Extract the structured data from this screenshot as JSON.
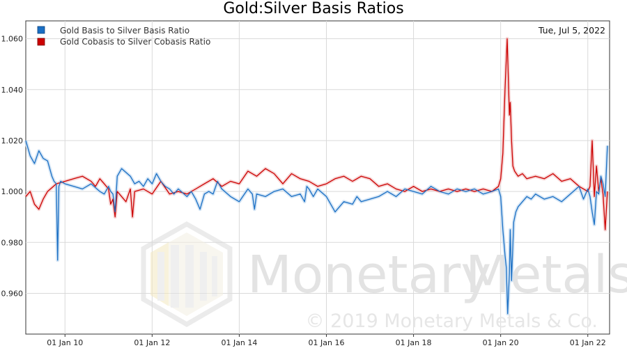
{
  "chart_data": {
    "type": "line",
    "title": "Gold:Silver Basis Ratios",
    "date_label": "Tue, Jul 5, 2022",
    "xlim": [
      2009.1,
      2022.5
    ],
    "ylim": [
      0.944,
      1.067
    ],
    "yticks": [
      0.96,
      0.98,
      1.0,
      1.02,
      1.04,
      1.06
    ],
    "ytick_labels": [
      "0.960",
      "0.980",
      "1.000",
      "1.020",
      "1.040",
      "1.060"
    ],
    "xticks": [
      2010,
      2012,
      2014,
      2016,
      2018,
      2020,
      2022
    ],
    "xtick_labels": [
      "01 Jan 10",
      "01 Jan 12",
      "01 Jan 14",
      "01 Jan 16",
      "01 Jan 18",
      "01 Jan 20",
      "01 Jan 22"
    ],
    "grid": true,
    "legend_position": "top-left",
    "series": [
      {
        "name": "Gold Basis to Silver Basis Ratio",
        "color": "#1a6fc4",
        "x": [
          2009.1,
          2009.2,
          2009.3,
          2009.4,
          2009.5,
          2009.6,
          2009.7,
          2009.75,
          2009.8,
          2009.83,
          2009.86,
          2009.9,
          2010.0,
          2010.2,
          2010.4,
          2010.6,
          2010.8,
          2010.9,
          2011.0,
          2011.05,
          2011.1,
          2011.15,
          2011.2,
          2011.3,
          2011.5,
          2011.6,
          2011.7,
          2011.8,
          2011.9,
          2012.0,
          2012.1,
          2012.2,
          2012.3,
          2012.4,
          2012.5,
          2012.6,
          2012.8,
          2012.9,
          2013.0,
          2013.1,
          2013.2,
          2013.3,
          2013.4,
          2013.5,
          2013.6,
          2013.8,
          2014.0,
          2014.2,
          2014.3,
          2014.35,
          2014.4,
          2014.6,
          2014.8,
          2015.0,
          2015.2,
          2015.4,
          2015.5,
          2015.55,
          2015.6,
          2015.7,
          2015.8,
          2016.0,
          2016.2,
          2016.4,
          2016.6,
          2016.7,
          2016.8,
          2017.0,
          2017.2,
          2017.4,
          2017.6,
          2017.8,
          2018.0,
          2018.2,
          2018.4,
          2018.6,
          2018.8,
          2019.0,
          2019.2,
          2019.4,
          2019.6,
          2019.8,
          2019.95,
          2020.0,
          2020.05,
          2020.1,
          2020.13,
          2020.16,
          2020.2,
          2020.22,
          2020.25,
          2020.3,
          2020.35,
          2020.4,
          2020.5,
          2020.6,
          2020.7,
          2020.8,
          2021.0,
          2021.2,
          2021.4,
          2021.6,
          2021.8,
          2021.9,
          2022.0,
          2022.05,
          2022.1,
          2022.15,
          2022.2,
          2022.25,
          2022.3,
          2022.35,
          2022.4,
          2022.45
        ],
        "y": [
          1.02,
          1.014,
          1.011,
          1.016,
          1.013,
          1.012,
          1.006,
          1.004,
          1.003,
          0.973,
          1.002,
          1.004,
          1.003,
          1.002,
          1.001,
          1.003,
          1.0,
          0.999,
          1.002,
          1.0,
          0.999,
          0.992,
          1.006,
          1.009,
          1.006,
          1.003,
          1.004,
          1.002,
          1.005,
          1.003,
          1.007,
          1.004,
          1.002,
          1.001,
          0.999,
          1.001,
          0.998,
          1.0,
          0.997,
          0.993,
          0.999,
          1.0,
          0.999,
          1.004,
          1.001,
          0.998,
          0.996,
          1.001,
          0.999,
          0.993,
          0.999,
          0.998,
          1.0,
          1.001,
          0.998,
          0.999,
          0.996,
          1.002,
          1.001,
          0.998,
          1.001,
          0.998,
          0.992,
          0.996,
          0.995,
          0.998,
          0.996,
          0.997,
          0.998,
          1.0,
          0.998,
          1.001,
          1.0,
          0.999,
          1.002,
          1.0,
          0.999,
          1.001,
          1.0,
          1.001,
          0.999,
          1.0,
          1.001,
          0.998,
          0.985,
          0.975,
          0.97,
          0.952,
          0.968,
          0.985,
          0.965,
          0.988,
          0.992,
          0.994,
          0.996,
          0.998,
          0.997,
          0.999,
          0.997,
          0.998,
          0.996,
          0.999,
          1.002,
          0.997,
          1.001,
          0.998,
          0.992,
          0.987,
          1.0,
          0.999,
          1.006,
          1.003,
          0.998,
          1.018
        ]
      },
      {
        "name": "Gold Cobasis to Silver Cobasis Ratio",
        "color": "#cc0000",
        "x": [
          2009.1,
          2009.2,
          2009.3,
          2009.4,
          2009.5,
          2009.6,
          2009.8,
          2010.0,
          2010.2,
          2010.4,
          2010.6,
          2010.7,
          2010.8,
          2010.9,
          2011.0,
          2011.05,
          2011.1,
          2011.15,
          2011.2,
          2011.4,
          2011.5,
          2011.55,
          2011.6,
          2011.8,
          2012.0,
          2012.2,
          2012.4,
          2012.6,
          2012.8,
          2013.0,
          2013.2,
          2013.4,
          2013.6,
          2013.8,
          2014.0,
          2014.2,
          2014.4,
          2014.6,
          2014.8,
          2015.0,
          2015.2,
          2015.4,
          2015.6,
          2015.8,
          2016.0,
          2016.2,
          2016.4,
          2016.6,
          2016.8,
          2017.0,
          2017.2,
          2017.4,
          2017.6,
          2017.8,
          2018.0,
          2018.2,
          2018.4,
          2018.6,
          2018.8,
          2019.0,
          2019.2,
          2019.4,
          2019.6,
          2019.8,
          2019.95,
          2020.0,
          2020.05,
          2020.1,
          2020.15,
          2020.2,
          2020.22,
          2020.25,
          2020.28,
          2020.32,
          2020.4,
          2020.5,
          2020.6,
          2020.8,
          2021.0,
          2021.2,
          2021.4,
          2021.6,
          2021.8,
          2022.0,
          2022.05,
          2022.1,
          2022.15,
          2022.2,
          2022.25,
          2022.3,
          2022.35,
          2022.4,
          2022.45
        ],
        "y": [
          0.998,
          1.0,
          0.995,
          0.993,
          0.997,
          1.0,
          1.003,
          1.004,
          1.005,
          1.006,
          1.004,
          1.002,
          1.005,
          1.003,
          1.001,
          0.995,
          0.997,
          0.99,
          1.0,
          0.996,
          1.001,
          0.99,
          1.0,
          1.001,
          0.999,
          1.004,
          0.999,
          1.0,
          0.999,
          1.001,
          1.003,
          1.005,
          1.002,
          1.004,
          1.003,
          1.008,
          1.006,
          1.009,
          1.007,
          1.003,
          1.007,
          1.005,
          1.004,
          1.002,
          1.003,
          1.005,
          1.006,
          1.004,
          1.006,
          1.005,
          1.002,
          1.003,
          1.001,
          1.0,
          1.002,
          1.0,
          1.001,
          1.0,
          1.001,
          1.0,
          1.001,
          1.0,
          1.001,
          1.0,
          1.002,
          1.005,
          1.015,
          1.04,
          1.06,
          1.03,
          1.035,
          1.02,
          1.01,
          1.008,
          1.006,
          1.007,
          1.005,
          1.006,
          1.005,
          1.007,
          1.004,
          1.005,
          1.002,
          1.0,
          1.002,
          1.02,
          0.998,
          1.01,
          1.0,
          1.005,
          0.999,
          0.985,
          1.0
        ]
      }
    ],
    "watermark": {
      "brand_part1": "Monetary",
      "brand_part2": "Metals",
      "copyright": "© 2019 Monetary Metals & Co."
    }
  }
}
